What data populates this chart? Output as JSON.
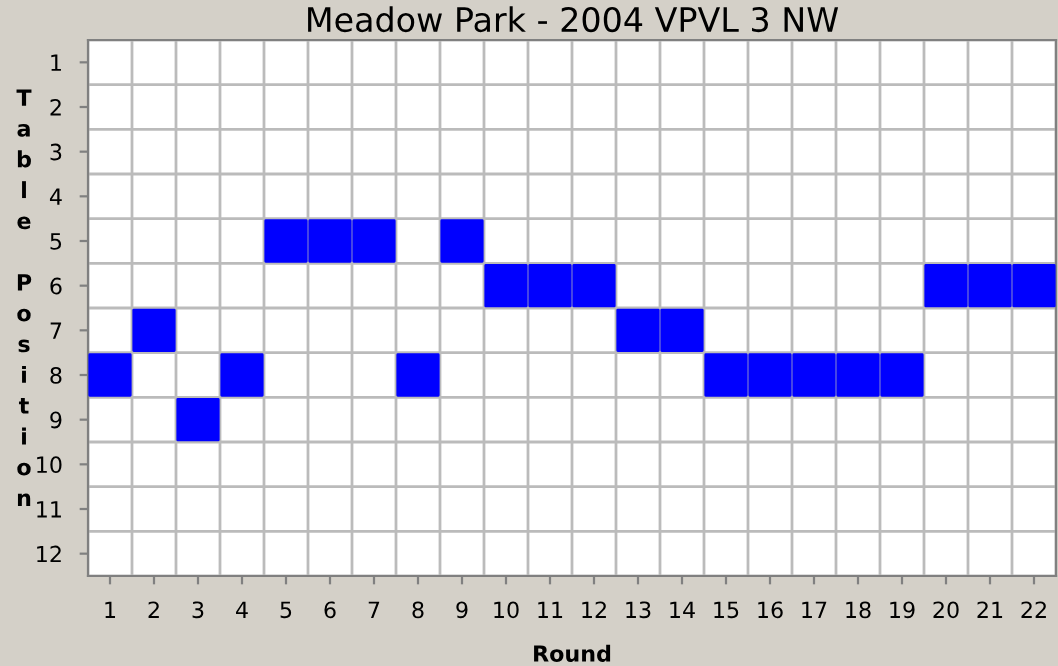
{
  "chart_data": {
    "type": "scatter",
    "title": "Meadow Park - 2004 VPVL 3 NW",
    "xlabel": "Round",
    "ylabel": "Table Position",
    "categories": [
      "1",
      "2",
      "3",
      "4",
      "5",
      "6",
      "7",
      "8",
      "9",
      "10",
      "11",
      "12",
      "13",
      "14",
      "15",
      "16",
      "17",
      "18",
      "19",
      "20",
      "21",
      "22"
    ],
    "series": [
      {
        "color": "#0000ff",
        "values": [
          8,
          7,
          9,
          8,
          5,
          5,
          5,
          8,
          5,
          6,
          6,
          6,
          7,
          7,
          8,
          8,
          8,
          8,
          8,
          6,
          6,
          6
        ]
      }
    ],
    "ylim": [
      12.5,
      0.5
    ],
    "yticks": [
      1,
      2,
      3,
      4,
      5,
      6,
      7,
      8,
      9,
      10,
      11,
      12
    ],
    "marker": "square",
    "grid": true
  }
}
